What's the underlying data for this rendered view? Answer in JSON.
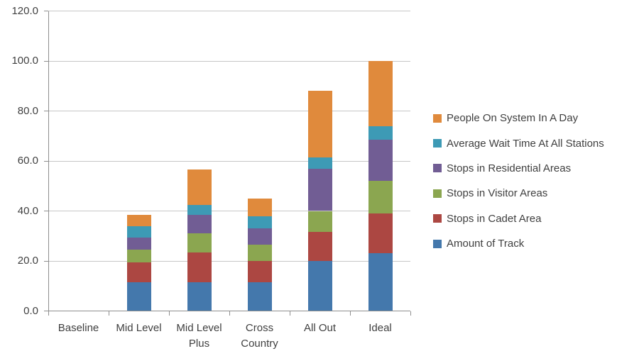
{
  "chart_data": {
    "type": "bar",
    "stacked": true,
    "title": "",
    "xlabel": "",
    "ylabel": "",
    "categories": [
      "Baseline",
      "Mid Level",
      "Mid Level Plus",
      "Cross Country",
      "All Out",
      "Ideal"
    ],
    "series": [
      {
        "name": "Amount of Track",
        "color": "#4478AC",
        "values": [
          0,
          11.5,
          11.5,
          11.5,
          20,
          23
        ]
      },
      {
        "name": "Stops in Cadet Area",
        "color": "#AC4742",
        "values": [
          0,
          8,
          12,
          8.5,
          11.5,
          16
        ]
      },
      {
        "name": "Stops in Visitor Areas",
        "color": "#8BA650",
        "values": [
          0,
          5,
          7.5,
          6.5,
          8.5,
          13
        ]
      },
      {
        "name": "Stops in Residential Areas",
        "color": "#715D94",
        "values": [
          0,
          5,
          7.5,
          6.5,
          17,
          16.5
        ]
      },
      {
        "name": "Average Wait Time At All Stations",
        "color": "#3D9AB5",
        "values": [
          0,
          4.5,
          4,
          5,
          4.5,
          5.5
        ]
      },
      {
        "name": "People On System In A Day",
        "color": "#E08A3C",
        "values": [
          0,
          4.5,
          14,
          7,
          26.5,
          26
        ]
      }
    ],
    "category_totals": [
      0,
      38.5,
      56.5,
      45,
      88,
      100
    ],
    "ylim": [
      0,
      120
    ],
    "ytick_step": 20,
    "ytick_labels": [
      "0.0",
      "20.0",
      "40.0",
      "60.0",
      "80.0",
      "100.0",
      "120.0"
    ],
    "grid": true,
    "legend_position": "right",
    "legend_order": "reverse-of-stack"
  },
  "colors": {
    "gridline": "#C6C6C6",
    "axis": "#8E8E8E",
    "text": "#3F3F3F",
    "background": "#FFFFFF"
  }
}
